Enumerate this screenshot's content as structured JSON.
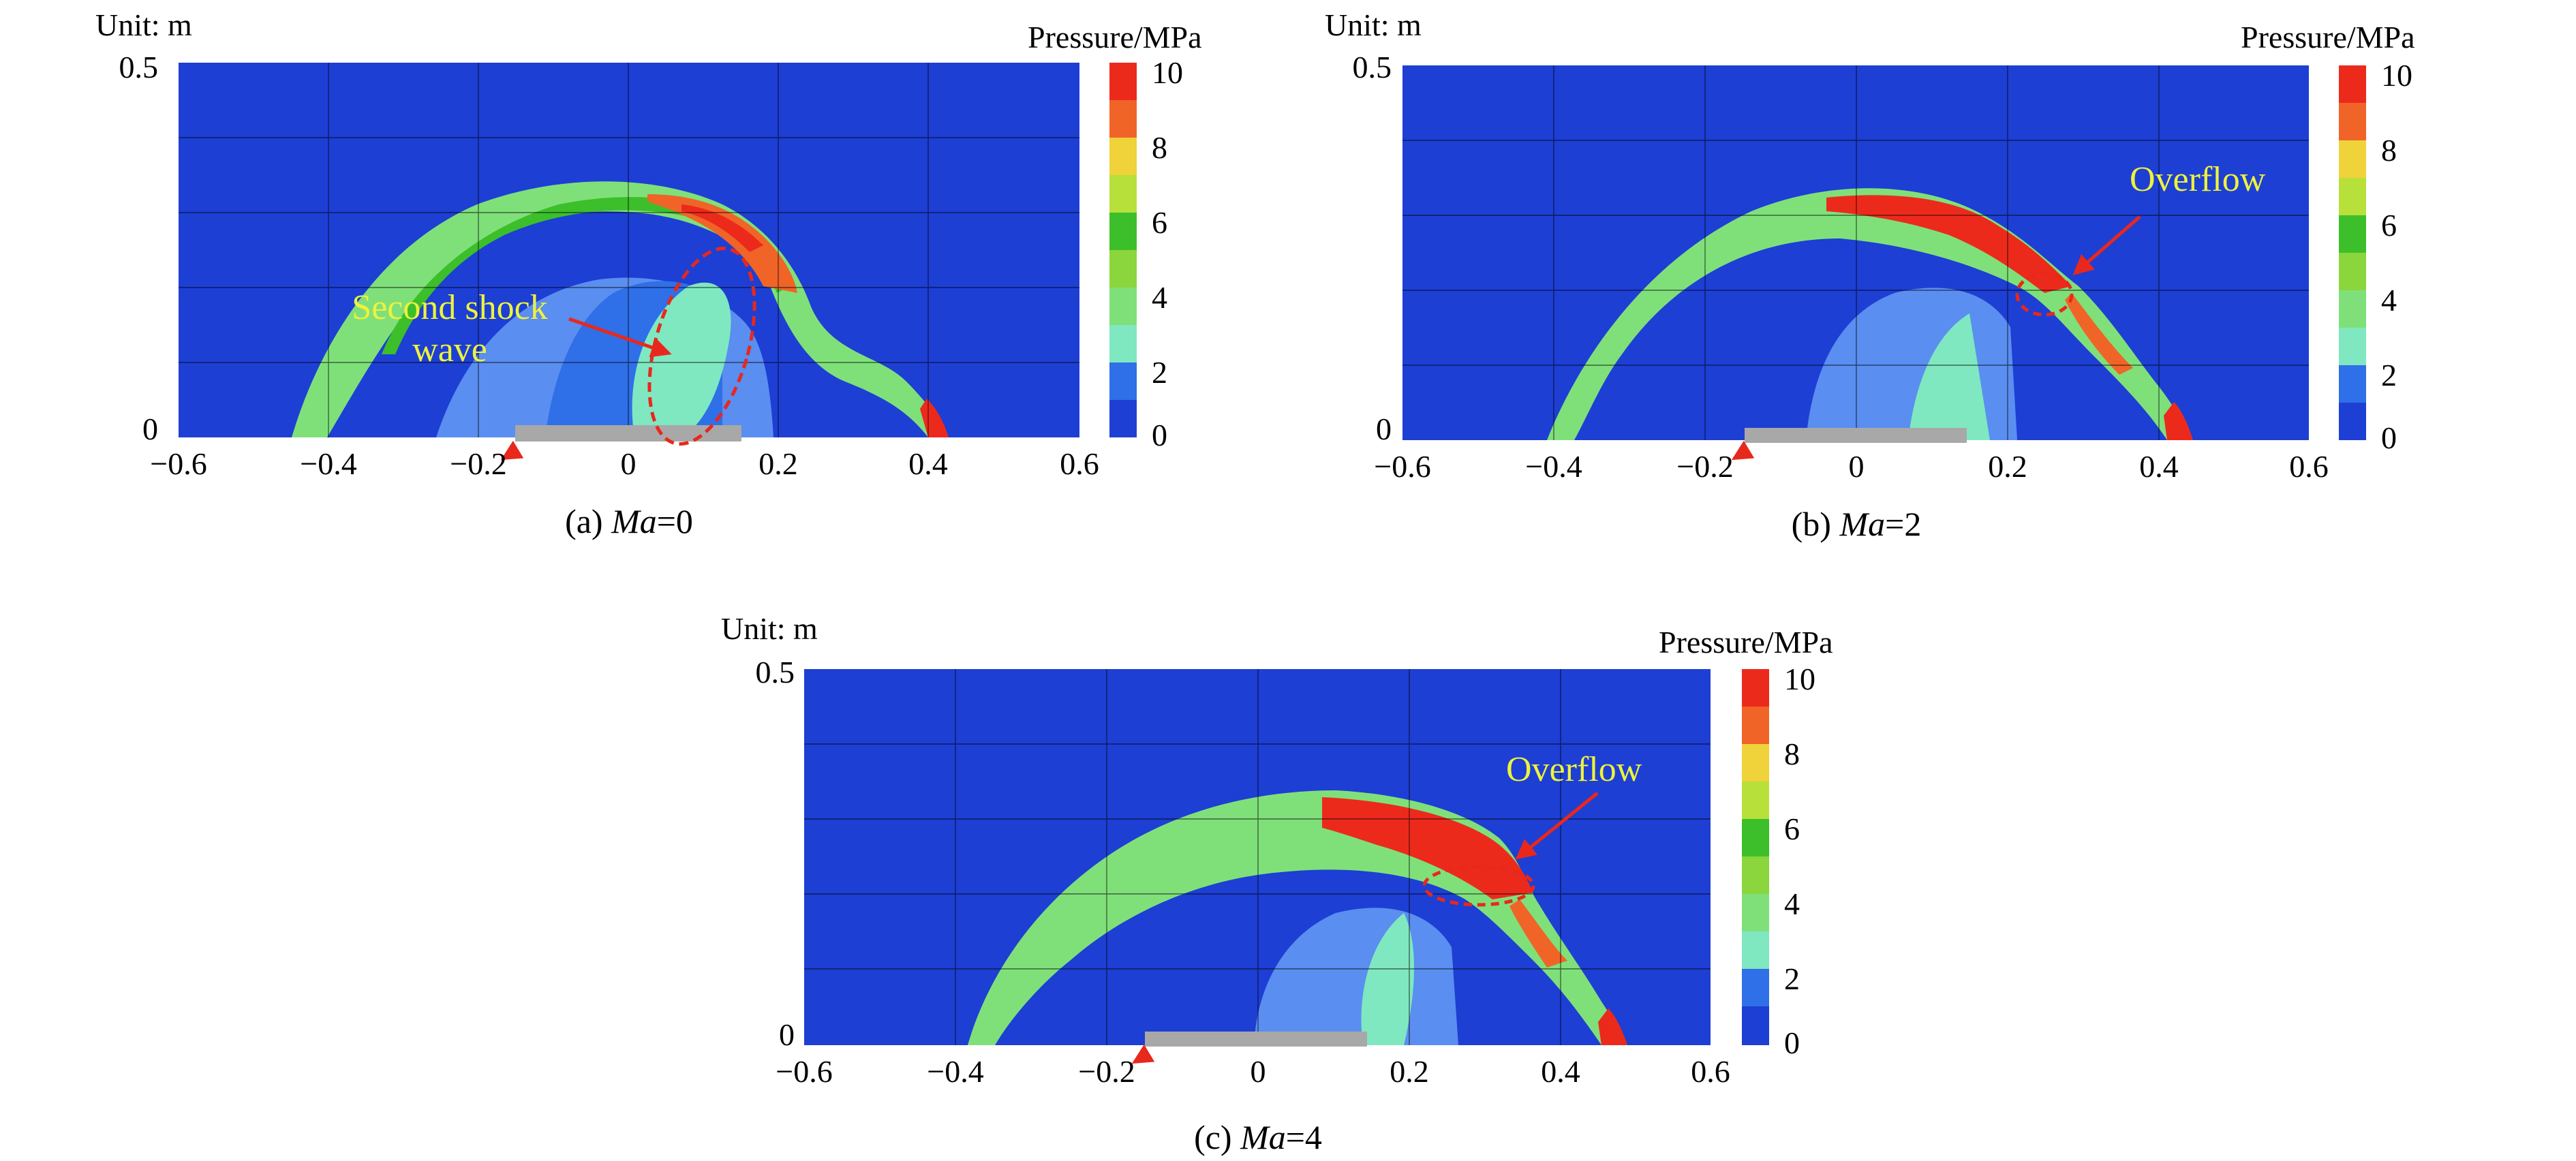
{
  "panels": [
    {
      "id": "a",
      "unit_label": "Unit: m",
      "y_ticks": [
        "0.5",
        "0"
      ],
      "x_ticks": [
        "−0.6",
        "−0.4",
        "−0.2",
        "0",
        "0.2",
        "0.4",
        "0.6"
      ],
      "colorbar_title": "Pressure/MPa",
      "colorbar_ticks": [
        "10",
        "8",
        "6",
        "4",
        "2",
        "0"
      ],
      "caption_prefix": "(a) ",
      "caption_var": "Ma",
      "caption_suffix": "=0",
      "annotation": [
        "Second shock",
        "wave"
      ]
    },
    {
      "id": "b",
      "unit_label": "Unit: m",
      "y_ticks": [
        "0.5",
        "0"
      ],
      "x_ticks": [
        "−0.6",
        "−0.4",
        "−0.2",
        "0",
        "0.2",
        "0.4",
        "0.6"
      ],
      "colorbar_title": "Pressure/MPa",
      "colorbar_ticks": [
        "10",
        "8",
        "6",
        "4",
        "2",
        "0"
      ],
      "caption_prefix": "(b) ",
      "caption_var": "Ma",
      "caption_suffix": "=2",
      "annotation": [
        "Overflow"
      ]
    },
    {
      "id": "c",
      "unit_label": "Unit: m",
      "y_ticks": [
        "0.5",
        "0"
      ],
      "x_ticks": [
        "−0.6",
        "−0.4",
        "−0.2",
        "0",
        "0.2",
        "0.4",
        "0.6"
      ],
      "colorbar_title": "Pressure/MPa",
      "colorbar_ticks": [
        "10",
        "8",
        "6",
        "4",
        "2",
        "0"
      ],
      "caption_prefix": "(c) ",
      "caption_var": "Ma",
      "caption_suffix": "=4",
      "annotation": [
        "Overflow"
      ]
    }
  ],
  "colors": {
    "background_field": "#1d3fd4",
    "level_1": "#2f6fe8",
    "level_2": "#5a8ef0",
    "level_3": "#7fe8c0",
    "level_4": "#7fe07a",
    "level_5": "#8ad63c",
    "level_6": "#3cbf2a",
    "level_7": "#b8e03a",
    "level_8": "#f0d23a",
    "level_9": "#f06428",
    "level_10": "#ec2a1c",
    "annotation_text": "#eef23c",
    "arrow": "#e8281c",
    "charge": "#a8a8a8"
  }
}
